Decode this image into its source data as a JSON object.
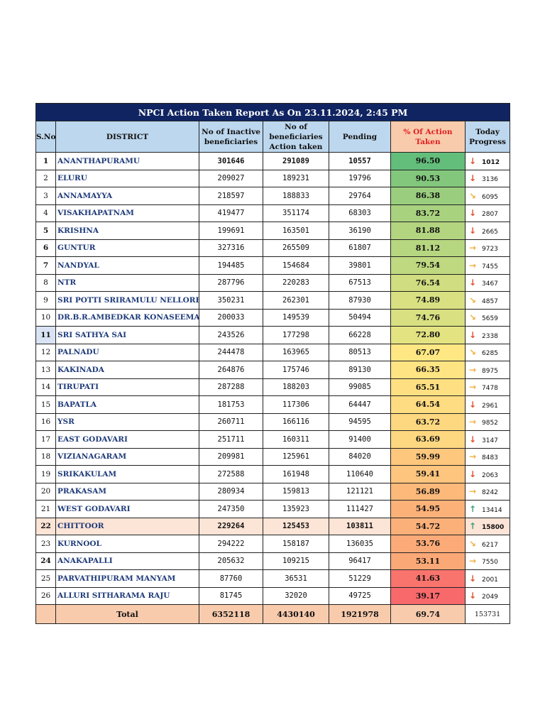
{
  "title": "NPCI Action Taken Report As On 23.11.2024, 2:45 PM",
  "headers": {
    "sno": "S.No",
    "district": "DISTRICT",
    "inactive": "No of Inactive beneficiaries",
    "action_taken": "No of beneficiaries Action taken",
    "pending": "Pending",
    "pct": "% Of Action Taken",
    "today": "Today Progress"
  },
  "color_scale": {
    "high": "#63be7b",
    "mid": "#ffeb84",
    "low": "#f8696b"
  },
  "trend_colors": {
    "down": "#e0502a",
    "down-right": "#f0b040",
    "right": "#f0b040",
    "up": "#3aa07a"
  },
  "rows": [
    {
      "sno": "1",
      "district": "ANANTHAPURAMU",
      "inactive": "301646",
      "action_taken": "291089",
      "pending": "10557",
      "pct": "96.50",
      "trend": "down",
      "today": "1012"
    },
    {
      "sno": "2",
      "district": "ELURU",
      "inactive": "209027",
      "action_taken": "189231",
      "pending": "19796",
      "pct": "90.53",
      "trend": "down",
      "today": "3136"
    },
    {
      "sno": "3",
      "district": "ANNAMAYYA",
      "inactive": "218597",
      "action_taken": "188833",
      "pending": "29764",
      "pct": "86.38",
      "trend": "down-right",
      "today": "6095"
    },
    {
      "sno": "4",
      "district": "VISAKHAPATNAM",
      "inactive": "419477",
      "action_taken": "351174",
      "pending": "68303",
      "pct": "83.72",
      "trend": "down",
      "today": "2807"
    },
    {
      "sno": "5",
      "district": "KRISHNA",
      "inactive": "199691",
      "action_taken": "163501",
      "pending": "36190",
      "pct": "81.88",
      "trend": "down",
      "today": "2665"
    },
    {
      "sno": "6",
      "district": "GUNTUR",
      "inactive": "327316",
      "action_taken": "265509",
      "pending": "61807",
      "pct": "81.12",
      "trend": "right",
      "today": "9723"
    },
    {
      "sno": "7",
      "district": "NANDYAL",
      "inactive": "194485",
      "action_taken": "154684",
      "pending": "39801",
      "pct": "79.54",
      "trend": "right",
      "today": "7455"
    },
    {
      "sno": "8",
      "district": "NTR",
      "inactive": "287796",
      "action_taken": "220283",
      "pending": "67513",
      "pct": "76.54",
      "trend": "down",
      "today": "3467"
    },
    {
      "sno": "9",
      "district": "SRI POTTI SRIRAMULU NELLORE",
      "inactive": "350231",
      "action_taken": "262301",
      "pending": "87930",
      "pct": "74.89",
      "trend": "down-right",
      "today": "4857"
    },
    {
      "sno": "10",
      "district": "DR.B.R.AMBEDKAR KONASEEMA",
      "inactive": "200033",
      "action_taken": "149539",
      "pending": "50494",
      "pct": "74.76",
      "trend": "down-right",
      "today": "5659"
    },
    {
      "sno": "11",
      "district": "SRI SATHYA SAI",
      "inactive": "243526",
      "action_taken": "177298",
      "pending": "66228",
      "pct": "72.80",
      "trend": "down",
      "today": "2338"
    },
    {
      "sno": "12",
      "district": "PALNADU",
      "inactive": "244478",
      "action_taken": "163965",
      "pending": "80513",
      "pct": "67.07",
      "trend": "down-right",
      "today": "6285"
    },
    {
      "sno": "13",
      "district": "KAKINADA",
      "inactive": "264876",
      "action_taken": "175746",
      "pending": "89130",
      "pct": "66.35",
      "trend": "right",
      "today": "8975"
    },
    {
      "sno": "14",
      "district": "TIRUPATI",
      "inactive": "287288",
      "action_taken": "188203",
      "pending": "99085",
      "pct": "65.51",
      "trend": "right",
      "today": "7478"
    },
    {
      "sno": "15",
      "district": "BAPATLA",
      "inactive": "181753",
      "action_taken": "117306",
      "pending": "64447",
      "pct": "64.54",
      "trend": "down",
      "today": "2961"
    },
    {
      "sno": "16",
      "district": "YSR",
      "inactive": "260711",
      "action_taken": "166116",
      "pending": "94595",
      "pct": "63.72",
      "trend": "right",
      "today": "9852"
    },
    {
      "sno": "17",
      "district": "EAST GODAVARI",
      "inactive": "251711",
      "action_taken": "160311",
      "pending": "91400",
      "pct": "63.69",
      "trend": "down",
      "today": "3147"
    },
    {
      "sno": "18",
      "district": "VIZIANAGARAM",
      "inactive": "209981",
      "action_taken": "125961",
      "pending": "84020",
      "pct": "59.99",
      "trend": "right",
      "today": "8483"
    },
    {
      "sno": "19",
      "district": "SRIKAKULAM",
      "inactive": "272588",
      "action_taken": "161948",
      "pending": "110640",
      "pct": "59.41",
      "trend": "down",
      "today": "2063"
    },
    {
      "sno": "20",
      "district": "PRAKASAM",
      "inactive": "280934",
      "action_taken": "159813",
      "pending": "121121",
      "pct": "56.89",
      "trend": "right",
      "today": "8242"
    },
    {
      "sno": "21",
      "district": "WEST GODAVARI",
      "inactive": "247350",
      "action_taken": "135923",
      "pending": "111427",
      "pct": "54.95",
      "trend": "up",
      "today": "13414"
    },
    {
      "sno": "22",
      "district": "CHITTOOR",
      "inactive": "229264",
      "action_taken": "125453",
      "pending": "103811",
      "pct": "54.72",
      "trend": "up",
      "today": "15800"
    },
    {
      "sno": "23",
      "district": "KURNOOL",
      "inactive": "294222",
      "action_taken": "158187",
      "pending": "136035",
      "pct": "53.76",
      "trend": "down-right",
      "today": "6217"
    },
    {
      "sno": "24",
      "district": "ANAKAPALLI",
      "inactive": "205632",
      "action_taken": "109215",
      "pending": "96417",
      "pct": "53.11",
      "trend": "right",
      "today": "7550"
    },
    {
      "sno": "25",
      "district": "PARVATHIPURAM MANYAM",
      "inactive": "87760",
      "action_taken": "36531",
      "pending": "51229",
      "pct": "41.63",
      "trend": "down",
      "today": "2001"
    },
    {
      "sno": "26",
      "district": "ALLURI SITHARAMA RAJU",
      "inactive": "81745",
      "action_taken": "32020",
      "pending": "49725",
      "pct": "39.17",
      "trend": "down",
      "today": "2049"
    }
  ],
  "total": {
    "label": "Total",
    "inactive": "6352118",
    "action_taken": "4430140",
    "pending": "1921978",
    "pct": "69.74",
    "today": "153731"
  }
}
